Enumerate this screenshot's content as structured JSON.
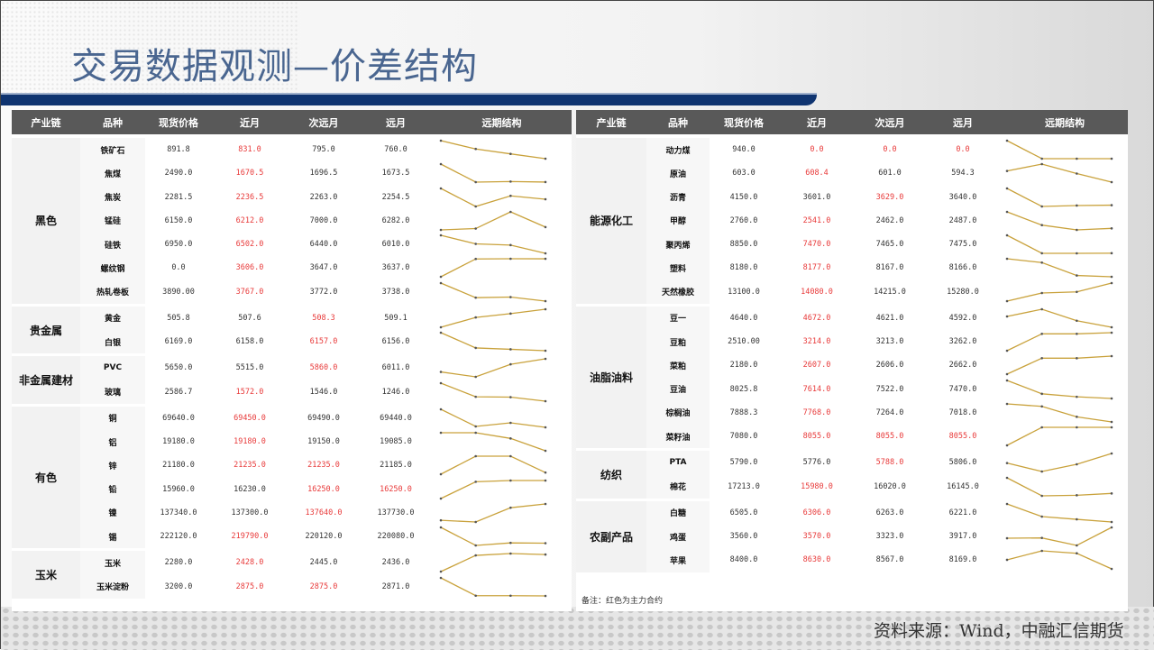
{
  "title": "交易数据观测—价差结构",
  "source": "资料来源：Wind，中融汇信期货",
  "note": "备注：红色为主力合约",
  "colors": {
    "header_bg": "#595959",
    "main_contract": "#e83a3a",
    "sparkline": "#c9a23c",
    "title": "#4a6690"
  },
  "headers": [
    "产业链",
    "品种",
    "现货价格",
    "近月",
    "次远月",
    "远月",
    "远期结构"
  ],
  "left": [
    {
      "group": "黑色",
      "rows": [
        {
          "name": "铁矿石",
          "spot": "891.8",
          "near": "831.0",
          "next": "795.0",
          "far": "760.0",
          "red": [
            "near"
          ]
        },
        {
          "name": "焦煤",
          "spot": "2490.0",
          "near": "1670.5",
          "next": "1696.5",
          "far": "1673.5",
          "red": [
            "near"
          ]
        },
        {
          "name": "焦炭",
          "spot": "2281.5",
          "near": "2236.5",
          "next": "2263.0",
          "far": "2254.5",
          "red": [
            "near"
          ]
        },
        {
          "name": "锰硅",
          "spot": "6150.0",
          "near": "6212.0",
          "next": "7000.0",
          "far": "6282.0",
          "red": [
            "near"
          ]
        },
        {
          "name": "硅铁",
          "spot": "6950.0",
          "near": "6502.0",
          "next": "6440.0",
          "far": "6010.0",
          "red": [
            "near"
          ]
        },
        {
          "name": "螺纹钢",
          "spot": "0.0",
          "near": "3606.0",
          "next": "3647.0",
          "far": "3637.0",
          "red": [
            "near"
          ]
        },
        {
          "name": "热轧卷板",
          "spot": "3890.00",
          "near": "3767.0",
          "next": "3772.0",
          "far": "3738.0",
          "red": [
            "near"
          ]
        }
      ]
    },
    {
      "group": "贵金属",
      "rows": [
        {
          "name": "黄金",
          "spot": "505.8",
          "near": "507.6",
          "next": "508.3",
          "far": "509.1",
          "red": [
            "next"
          ]
        },
        {
          "name": "白银",
          "spot": "6169.0",
          "near": "6158.0",
          "next": "6157.0",
          "far": "6156.0",
          "red": [
            "next"
          ]
        }
      ]
    },
    {
      "group": "非金属建材",
      "rows": [
        {
          "name": "PVC",
          "spot": "5650.0",
          "near": "5515.0",
          "next": "5860.0",
          "far": "6011.0",
          "red": [
            "next"
          ]
        },
        {
          "name": "玻璃",
          "spot": "2586.7",
          "near": "1572.0",
          "next": "1546.0",
          "far": "1246.0",
          "red": [
            "near"
          ]
        }
      ]
    },
    {
      "group": "有色",
      "rows": [
        {
          "name": "铜",
          "spot": "69640.0",
          "near": "69450.0",
          "next": "69490.0",
          "far": "69440.0",
          "red": [
            "near"
          ]
        },
        {
          "name": "铝",
          "spot": "19180.0",
          "near": "19180.0",
          "next": "19150.0",
          "far": "19085.0",
          "red": [
            "near"
          ]
        },
        {
          "name": "锌",
          "spot": "21180.0",
          "near": "21235.0",
          "next": "21235.0",
          "far": "21185.0",
          "red": [
            "near",
            "next"
          ]
        },
        {
          "name": "铅",
          "spot": "15960.0",
          "near": "16230.0",
          "next": "16250.0",
          "far": "16250.0",
          "red": [
            "next",
            "far"
          ]
        },
        {
          "name": "镍",
          "spot": "137340.0",
          "near": "137300.0",
          "next": "137640.0",
          "far": "137730.0",
          "red": [
            "next"
          ]
        },
        {
          "name": "锡",
          "spot": "222120.0",
          "near": "219790.0",
          "next": "220120.0",
          "far": "220080.0",
          "red": [
            "near"
          ]
        }
      ]
    },
    {
      "group": "玉米",
      "rows": [
        {
          "name": "玉米",
          "spot": "2280.0",
          "near": "2428.0",
          "next": "2445.0",
          "far": "2436.0",
          "red": [
            "near"
          ]
        },
        {
          "name": "玉米淀粉",
          "spot": "3200.0",
          "near": "2875.0",
          "next": "2875.0",
          "far": "2871.0",
          "red": [
            "near",
            "next"
          ]
        }
      ]
    }
  ],
  "right": [
    {
      "group": "能源化工",
      "rows": [
        {
          "name": "动力煤",
          "spot": "940.0",
          "near": "0.0",
          "next": "0.0",
          "far": "0.0",
          "red": [
            "near",
            "next",
            "far"
          ]
        },
        {
          "name": "原油",
          "spot": "603.0",
          "near": "608.4",
          "next": "601.0",
          "far": "594.3",
          "red": [
            "near"
          ]
        },
        {
          "name": "沥青",
          "spot": "4150.0",
          "near": "3601.0",
          "next": "3629.0",
          "far": "3640.0",
          "red": [
            "next"
          ]
        },
        {
          "name": "甲醇",
          "spot": "2760.0",
          "near": "2541.0",
          "next": "2462.0",
          "far": "2487.0",
          "red": [
            "near"
          ]
        },
        {
          "name": "聚丙烯",
          "spot": "8850.0",
          "near": "7470.0",
          "next": "7465.0",
          "far": "7475.0",
          "red": [
            "near"
          ]
        },
        {
          "name": "塑料",
          "spot": "8180.0",
          "near": "8177.0",
          "next": "8167.0",
          "far": "8166.0",
          "red": [
            "near"
          ]
        },
        {
          "name": "天然橡胶",
          "spot": "13100.0",
          "near": "14080.0",
          "next": "14215.0",
          "far": "15280.0",
          "red": [
            "near"
          ]
        }
      ]
    },
    {
      "group": "油脂油料",
      "rows": [
        {
          "name": "豆一",
          "spot": "4640.0",
          "near": "4672.0",
          "next": "4621.0",
          "far": "4592.0",
          "red": [
            "near"
          ]
        },
        {
          "name": "豆粕",
          "spot": "2510.00",
          "near": "3214.0",
          "next": "3213.0",
          "far": "3262.0",
          "red": [
            "near"
          ]
        },
        {
          "name": "菜粕",
          "spot": "2180.0",
          "near": "2607.0",
          "next": "2606.0",
          "far": "2662.0",
          "red": [
            "near"
          ]
        },
        {
          "name": "豆油",
          "spot": "8025.8",
          "near": "7614.0",
          "next": "7522.0",
          "far": "7470.0",
          "red": [
            "near"
          ]
        },
        {
          "name": "棕榈油",
          "spot": "7888.3",
          "near": "7768.0",
          "next": "7264.0",
          "far": "7018.0",
          "red": [
            "near"
          ]
        },
        {
          "name": "菜籽油",
          "spot": "7080.0",
          "near": "8055.0",
          "next": "8055.0",
          "far": "8055.0",
          "red": [
            "near",
            "next",
            "far"
          ]
        }
      ]
    },
    {
      "group": "纺织",
      "rows": [
        {
          "name": "PTA",
          "spot": "5790.0",
          "near": "5776.0",
          "next": "5788.0",
          "far": "5806.0",
          "red": [
            "next"
          ]
        },
        {
          "name": "棉花",
          "spot": "17213.0",
          "near": "15980.0",
          "next": "16020.0",
          "far": "16145.0",
          "red": [
            "near"
          ]
        }
      ]
    },
    {
      "group": "农副产品",
      "rows": [
        {
          "name": "白糖",
          "spot": "6505.0",
          "near": "6306.0",
          "next": "6263.0",
          "far": "6221.0",
          "red": [
            "near"
          ]
        },
        {
          "name": "鸡蛋",
          "spot": "3560.0",
          "near": "3570.0",
          "next": "3323.0",
          "far": "3917.0",
          "red": [
            "near"
          ]
        },
        {
          "name": "苹果",
          "spot": "8400.0",
          "near": "8630.0",
          "next": "8567.0",
          "far": "8169.0",
          "red": [
            "near"
          ]
        }
      ]
    }
  ]
}
